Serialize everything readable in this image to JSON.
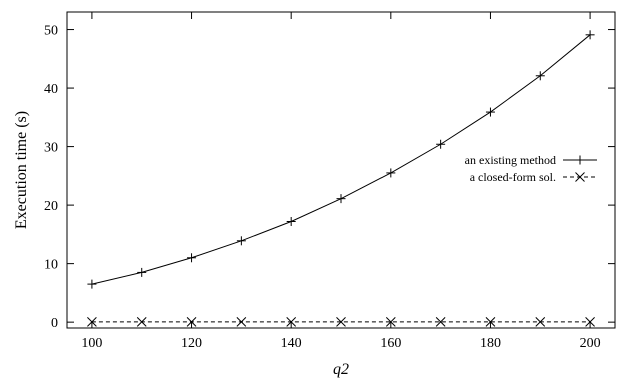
{
  "chart_data": {
    "type": "line",
    "xlabel": "q2",
    "ylabel": "Execution time (s)",
    "xlim": [
      95,
      205
    ],
    "ylim": [
      -1,
      53
    ],
    "x_ticks": [
      100,
      120,
      140,
      160,
      180,
      200
    ],
    "y_ticks": [
      0,
      10,
      20,
      30,
      40,
      50
    ],
    "grid": false,
    "legend_position": "right",
    "x": [
      100,
      110,
      120,
      130,
      140,
      150,
      160,
      170,
      180,
      190,
      200
    ],
    "series": [
      {
        "name": "an existing method",
        "values": [
          6.5,
          8.5,
          11.0,
          13.9,
          17.2,
          21.1,
          25.5,
          30.4,
          35.9,
          42.1,
          49.1
        ],
        "line_style": "solid",
        "marker": "plus",
        "color": "#000000"
      },
      {
        "name": "a closed-form sol.",
        "values": [
          0.05,
          0.05,
          0.05,
          0.05,
          0.05,
          0.05,
          0.05,
          0.05,
          0.05,
          0.05,
          0.05
        ],
        "line_style": "dashed",
        "marker": "cross",
        "color": "#000000"
      }
    ]
  }
}
